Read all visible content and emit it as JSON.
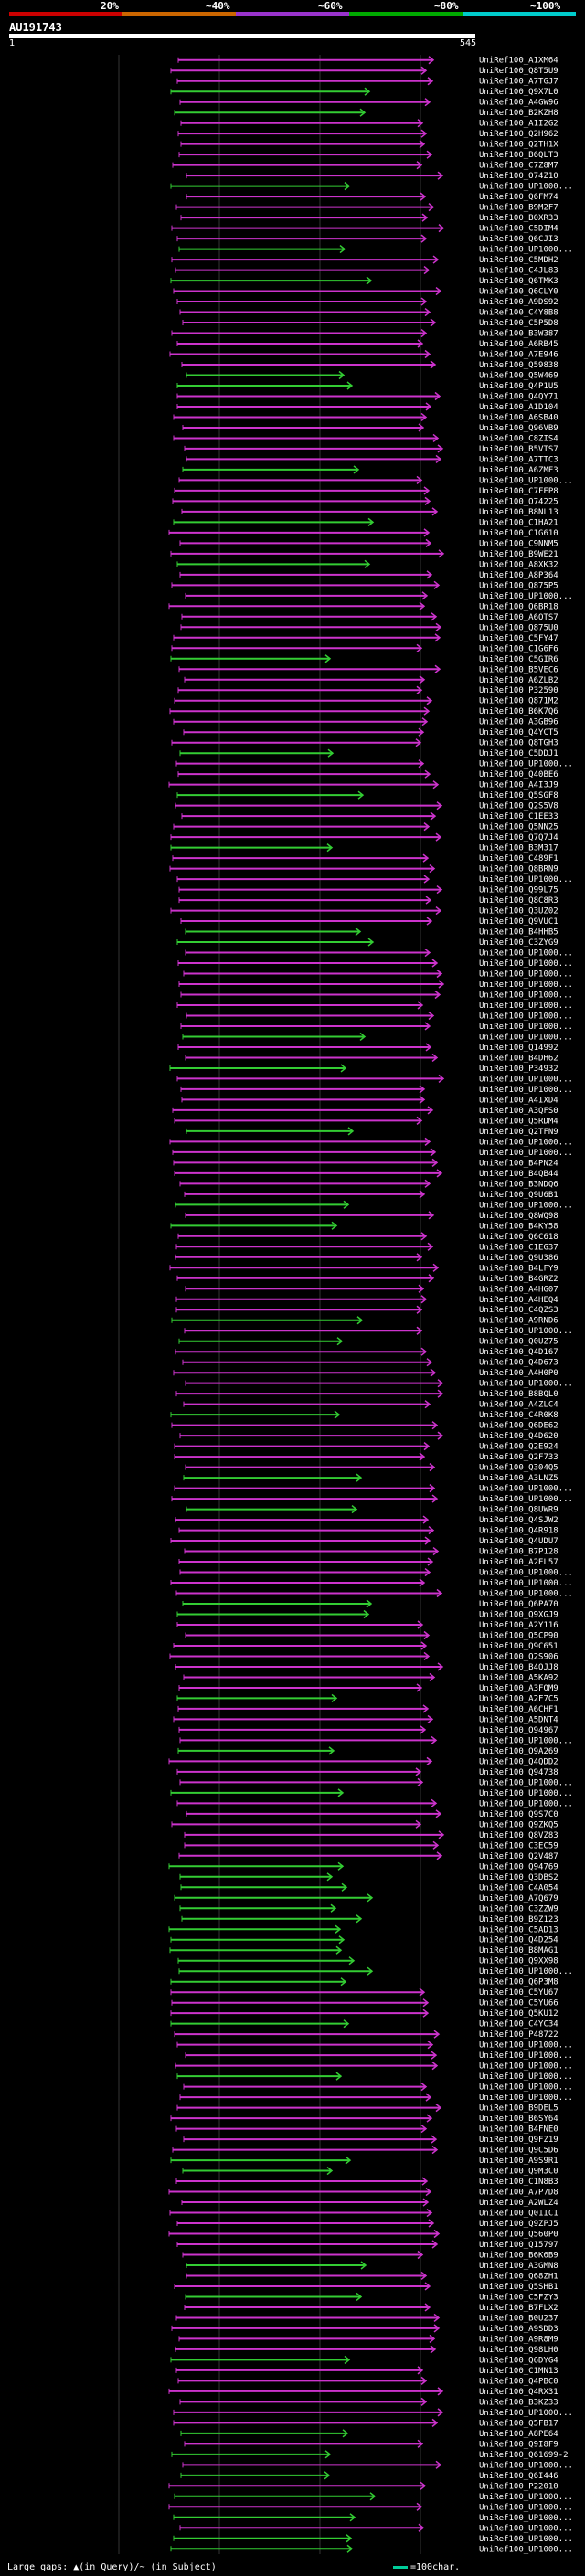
{
  "legend": {
    "labels": [
      "20%",
      "~40%",
      "~60%",
      "~80%",
      "~100%"
    ],
    "colors": [
      "#cc0000",
      "#cc6600",
      "#9933cc",
      "#00aa00",
      "#00cccc"
    ]
  },
  "query": {
    "title": "AU191743",
    "start": "1",
    "end": "545"
  },
  "colors": {
    "pink": "#cc33cc",
    "green": "#33cc33",
    "query": "#ffffff"
  },
  "footer": {
    "text": "Large gaps: ▲(in Query)/~ (in Subject)",
    "scale": "=100char."
  },
  "hit_labels": [
    "UniRef100_A1XM64",
    "UniRef100_Q8T5U9",
    "UniRef100_A7TGJ7",
    "UniRef100_Q9X7L0",
    "UniRef100_A4GW96",
    "UniRef100_B2KZH8",
    "UniRef100_A1I2G2",
    "UniRef100_Q2H962",
    "UniRef100_Q2TH1X",
    "UniRef100_B6QLT3",
    "UniRef100_C7Z8M7",
    "UniRef100_O74Z10",
    "UniRef100_UP1000...",
    "UniRef100_Q6FM74",
    "UniRef100_B9M2F7",
    "UniRef100_B0XR33",
    "UniRef100_C5DIM4",
    "UniRef100_Q6CJI3",
    "UniRef100_UP1000...",
    "UniRef100_C5MDH2",
    "UniRef100_C4JL83",
    "UniRef100_Q6TMK3",
    "UniRef100_Q6CLY0",
    "UniRef100_A9DS92",
    "UniRef100_C4Y8B8",
    "UniRef100_C5P5D8",
    "UniRef100_B3W387",
    "UniRef100_A6RB45",
    "UniRef100_A7E946",
    "UniRef100_Q59838",
    "UniRef100_Q5W469",
    "UniRef100_Q4P1U5",
    "UniRef100_Q4QY71",
    "UniRef100_A1D104",
    "UniRef100_A6SB40",
    "UniRef100_Q96VB9",
    "UniRef100_C8ZIS4",
    "UniRef100_B5VTS7",
    "UniRef100_A7TTC3",
    "UniRef100_A6ZME3",
    "UniRef100_UP1000...",
    "UniRef100_C7FEP8",
    "UniRef100_O74225",
    "UniRef100_B8NL13",
    "UniRef100_C1HA21",
    "UniRef100_C1G610",
    "UniRef100_C9NNM5",
    "UniRef100_B9WE21",
    "UniRef100_A8XK32",
    "UniRef100_A8P364",
    "UniRef100_Q875P5",
    "UniRef100_UP1000...",
    "UniRef100_Q6BR18",
    "UniRef100_A6QTS7",
    "UniRef100_Q875U0",
    "UniRef100_C5FY47",
    "UniRef100_C1G6F6",
    "UniRef100_C5GIR6",
    "UniRef100_B5VEC6",
    "UniRef100_A6ZLB2",
    "UniRef100_P32590",
    "UniRef100_Q871M2",
    "UniRef100_B6K7Q6",
    "UniRef100_A3GB96",
    "UniRef100_Q4YCT5",
    "UniRef100_Q8TGH3",
    "UniRef100_C5DDJ1",
    "UniRef100_UP1000...",
    "UniRef100_Q40BE6",
    "UniRef100_A4I3J9",
    "UniRef100_Q5SGF8",
    "UniRef100_Q2S5V8",
    "UniRef100_C1EE33",
    "UniRef100_Q5NN25",
    "UniRef100_Q7Q7J4",
    "UniRef100_B3M317",
    "UniRef100_C489F1",
    "UniRef100_Q8BRN9",
    "UniRef100_UP1000...",
    "UniRef100_Q99L75",
    "UniRef100_Q8C8R3",
    "UniRef100_Q3UZ02",
    "UniRef100_Q9VUC1",
    "UniRef100_B4HHB5",
    "UniRef100_C3ZYG9",
    "UniRef100_UP1000...",
    "UniRef100_UP1000...",
    "UniRef100_UP1000...",
    "UniRef100_UP1000...",
    "UniRef100_UP1000...",
    "UniRef100_UP1000...",
    "UniRef100_UP1000...",
    "UniRef100_UP1000...",
    "UniRef100_UP1000...",
    "UniRef100_Q14992",
    "UniRef100_B4DH62",
    "UniRef100_P34932",
    "UniRef100_UP1000...",
    "UniRef100_UP1000...",
    "UniRef100_A4IXD4",
    "UniRef100_A3QFS0",
    "UniRef100_Q5RDM4",
    "UniRef100_Q2TFN9",
    "UniRef100_UP1000...",
    "UniRef100_UP1000...",
    "UniRef100_B4PN24",
    "UniRef100_B4QB44",
    "UniRef100_B3NDQ6",
    "UniRef100_Q9U6B1",
    "UniRef100_UP1000...",
    "UniRef100_Q8WQ98",
    "UniRef100_B4KY58",
    "UniRef100_Q6C618",
    "UniRef100_C1EG37",
    "UniRef100_Q9U386",
    "UniRef100_B4LFY9",
    "UniRef100_B4GRZ2",
    "UniRef100_A4HG07",
    "UniRef100_A4HEQ4",
    "UniRef100_C4QZS3",
    "UniRef100_A9RND6",
    "UniRef100_UP1000...",
    "UniRef100_Q0UZ75",
    "UniRef100_Q4D167",
    "UniRef100_Q4D673",
    "UniRef100_A4H0P0",
    "UniRef100_UP1000...",
    "UniRef100_B8BQL0",
    "UniRef100_A4ZLC4",
    "UniRef100_C4R0K8",
    "UniRef100_Q6DE62",
    "UniRef100_Q4D620",
    "UniRef100_Q2E924",
    "UniRef100_Q2F733",
    "UniRef100_Q304Q5",
    "UniRef100_A3LNZ5",
    "UniRef100_UP1000...",
    "UniRef100_UP1000...",
    "UniRef100_Q8UWR9",
    "UniRef100_Q4SJW2",
    "UniRef100_Q4R918",
    "UniRef100_Q4UDU7",
    "UniRef100_B7P128",
    "UniRef100_A2EL57",
    "UniRef100_UP1000...",
    "UniRef100_UP1000...",
    "UniRef100_UP1000...",
    "UniRef100_Q6PA70",
    "UniRef100_Q9XGJ9",
    "UniRef100_A2Y116",
    "UniRef100_Q5CP90",
    "UniRef100_Q9C651",
    "UniRef100_Q2S906",
    "UniRef100_B4QJJ8",
    "UniRef100_A5KA92",
    "UniRef100_A3FQM9",
    "UniRef100_A2F7C5",
    "UniRef100_A6CHF1",
    "UniRef100_A5DNT4",
    "UniRef100_Q94967",
    "UniRef100_UP1000...",
    "UniRef100_Q9A269",
    "UniRef100_Q4QDD2",
    "UniRef100_Q94738",
    "UniRef100_UP1000...",
    "UniRef100_UP1000...",
    "UniRef100_UP1000...",
    "UniRef100_Q9S7C0",
    "UniRef100_Q9ZKQ5",
    "UniRef100_Q8VZ83",
    "UniRef100_C3EC59",
    "UniRef100_Q2V487",
    "UniRef100_Q94769",
    "UniRef100_Q3DBS2",
    "UniRef100_C4A054",
    "UniRef100_A7Q679",
    "UniRef100_C3ZZW9",
    "UniRef100_B9Z123",
    "UniRef100_C5AD13",
    "UniRef100_Q4D254",
    "UniRef100_B8MAG1",
    "UniRef100_Q9XX98",
    "UniRef100_UP1000...",
    "UniRef100_Q6P3M8",
    "UniRef100_C5YU67",
    "UniRef100_C5YU66",
    "UniRef100_Q5KU12",
    "UniRef100_C4YC34",
    "UniRef100_P48722",
    "UniRef100_UP1000...",
    "UniRef100_UP1000...",
    "UniRef100_UP1000...",
    "UniRef100_UP1000...",
    "UniRef100_UP1000...",
    "UniRef100_UP1000...",
    "UniRef100_B9DEL5",
    "UniRef100_B6SY64",
    "UniRef100_B4FNE0",
    "UniRef100_Q9FZ19",
    "UniRef100_Q9C5D6",
    "UniRef100_A9S9R1",
    "UniRef100_Q9M3C0",
    "UniRef100_C1N8B3",
    "UniRef100_A7P7D8",
    "UniRef100_A2WLZ4",
    "UniRef100_Q01IC1",
    "UniRef100_Q9ZPJ5",
    "UniRef100_Q560P0",
    "UniRef100_Q15797",
    "UniRef100_B6K6B9",
    "UniRef100_A3GMN8",
    "UniRef100_Q68ZH1",
    "UniRef100_Q5SHB1",
    "UniRef100_C5FZY3",
    "UniRef100_B7FLX2",
    "UniRef100_B0U237",
    "UniRef100_A9SDD3",
    "UniRef100_A9R8M9",
    "UniRef100_Q98LH0",
    "UniRef100_Q6DYG4",
    "UniRef100_C1MN13",
    "UniRef100_Q4PBC0",
    "UniRef100_Q4RX31",
    "UniRef100_B3KZ33",
    "UniRef100_UP1000...",
    "UniRef100_Q5FB17",
    "UniRef100_A8PE64",
    "UniRef100_Q9I8F9",
    "UniRef100_Q61699-2",
    "UniRef100_UP1000...",
    "UniRef100_Q6I446",
    "UniRef100_P22010",
    "UniRef100_UP1000...",
    "UniRef100_UP1000...",
    "UniRef100_UP1000...",
    "UniRef100_UP1000...",
    "UniRef100_UP1000...",
    "UniRef100_UP1000..."
  ]
}
